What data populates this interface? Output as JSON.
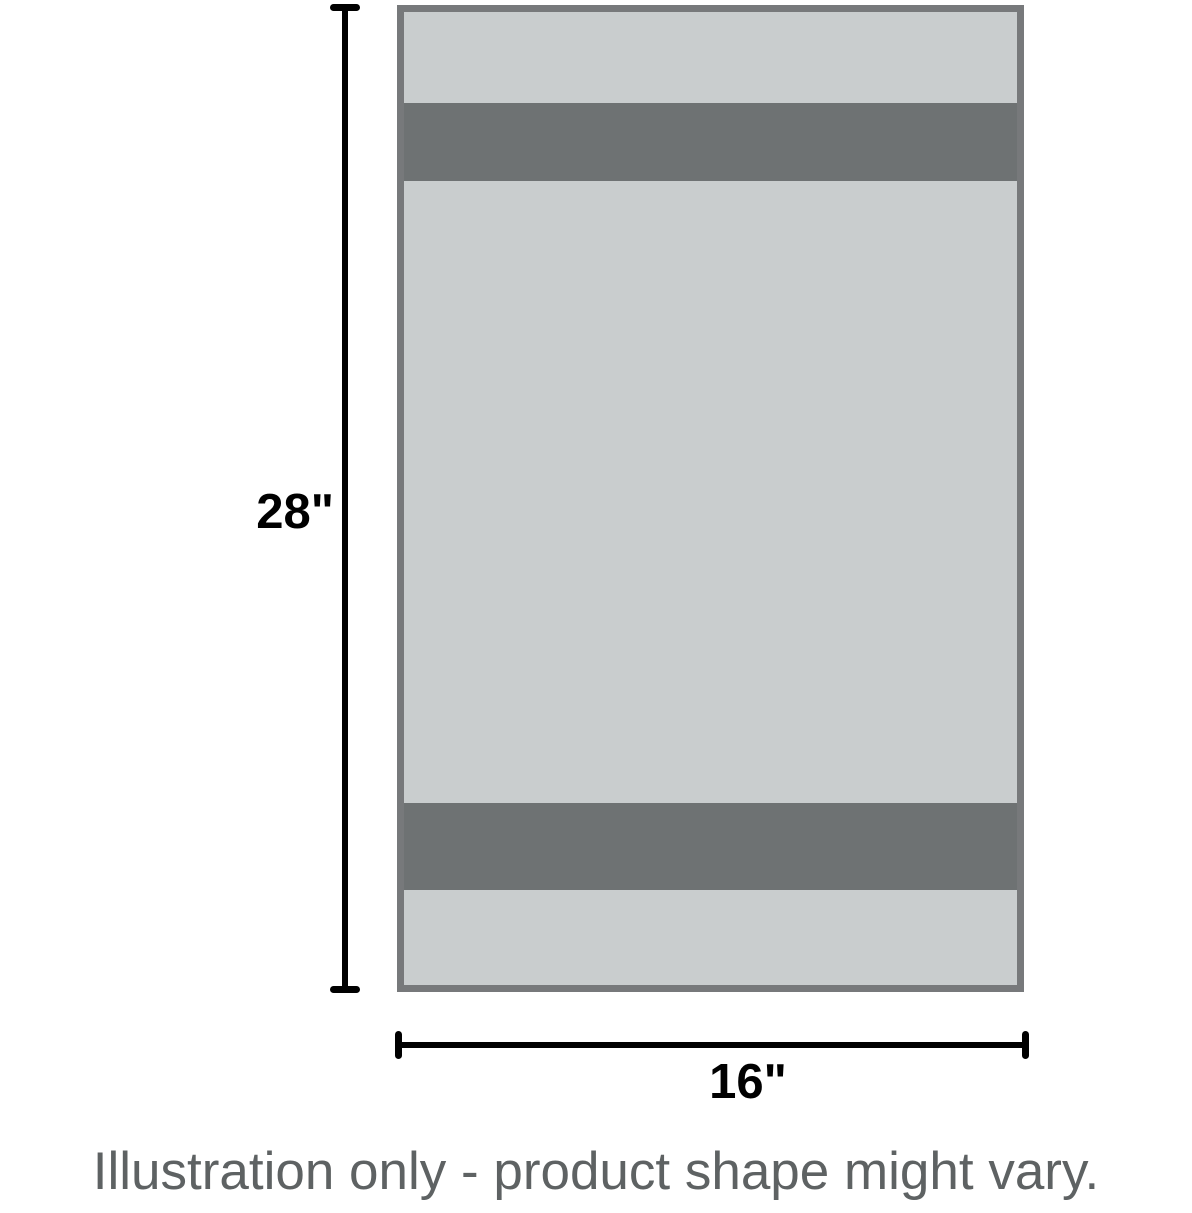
{
  "figure": {
    "type": "product-dimension-diagram",
    "height_dimension_label": "28\"",
    "width_dimension_label": "16\"",
    "caption": "Illustration only - product shape might vary.",
    "product": {
      "shape": "rectangle",
      "pattern": "two horizontal dark stripes near top and bottom on light gray body"
    }
  },
  "colors": {
    "background": "#ffffff",
    "towel_fill": "#c9cdce",
    "towel_stripe": "#6e7273",
    "towel_border": "#77797b",
    "dimension_line": "#000000",
    "caption_text": "#5e6263"
  }
}
